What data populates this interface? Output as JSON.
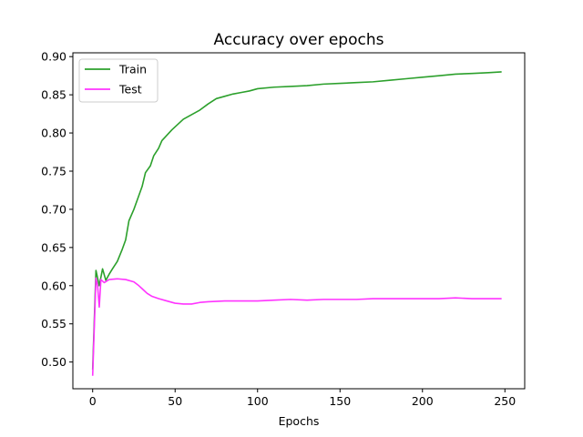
{
  "chart_data": {
    "type": "line",
    "title": "Accuracy over epochs",
    "xlabel": "Epochs",
    "ylabel": "",
    "xlim": [
      -12,
      262
    ],
    "ylim": [
      0.465,
      0.905
    ],
    "xticks": [
      0,
      50,
      100,
      150,
      200,
      250
    ],
    "yticks": [
      0.5,
      0.55,
      0.6,
      0.65,
      0.7,
      0.75,
      0.8,
      0.85,
      0.9
    ],
    "grid": false,
    "legend": "top-left",
    "series": [
      {
        "name": "Train",
        "color": "#2ca02c",
        "points": [
          [
            0,
            0.49
          ],
          [
            2,
            0.62
          ],
          [
            4,
            0.6
          ],
          [
            6,
            0.622
          ],
          [
            8,
            0.607
          ],
          [
            10,
            0.615
          ],
          [
            12,
            0.622
          ],
          [
            15,
            0.632
          ],
          [
            18,
            0.648
          ],
          [
            20,
            0.66
          ],
          [
            22,
            0.685
          ],
          [
            25,
            0.7
          ],
          [
            27,
            0.712
          ],
          [
            30,
            0.73
          ],
          [
            32,
            0.748
          ],
          [
            35,
            0.757
          ],
          [
            37,
            0.77
          ],
          [
            40,
            0.78
          ],
          [
            42,
            0.79
          ],
          [
            45,
            0.797
          ],
          [
            48,
            0.804
          ],
          [
            50,
            0.808
          ],
          [
            55,
            0.818
          ],
          [
            60,
            0.824
          ],
          [
            65,
            0.83
          ],
          [
            70,
            0.838
          ],
          [
            75,
            0.845
          ],
          [
            80,
            0.848
          ],
          [
            85,
            0.851
          ],
          [
            90,
            0.853
          ],
          [
            95,
            0.855
          ],
          [
            100,
            0.858
          ],
          [
            110,
            0.86
          ],
          [
            120,
            0.861
          ],
          [
            130,
            0.862
          ],
          [
            140,
            0.864
          ],
          [
            150,
            0.865
          ],
          [
            160,
            0.866
          ],
          [
            170,
            0.867
          ],
          [
            180,
            0.869
          ],
          [
            190,
            0.871
          ],
          [
            200,
            0.873
          ],
          [
            210,
            0.875
          ],
          [
            220,
            0.877
          ],
          [
            230,
            0.878
          ],
          [
            240,
            0.879
          ],
          [
            248,
            0.88
          ]
        ]
      },
      {
        "name": "Test",
        "color": "#ff33ff",
        "points": [
          [
            0,
            0.482
          ],
          [
            2,
            0.61
          ],
          [
            3,
            0.6
          ],
          [
            4,
            0.572
          ],
          [
            5,
            0.608
          ],
          [
            7,
            0.604
          ],
          [
            10,
            0.608
          ],
          [
            15,
            0.609
          ],
          [
            20,
            0.608
          ],
          [
            25,
            0.605
          ],
          [
            28,
            0.6
          ],
          [
            30,
            0.596
          ],
          [
            33,
            0.59
          ],
          [
            36,
            0.586
          ],
          [
            40,
            0.583
          ],
          [
            45,
            0.58
          ],
          [
            50,
            0.577
          ],
          [
            55,
            0.576
          ],
          [
            60,
            0.576
          ],
          [
            65,
            0.578
          ],
          [
            70,
            0.579
          ],
          [
            80,
            0.58
          ],
          [
            90,
            0.58
          ],
          [
            100,
            0.58
          ],
          [
            110,
            0.581
          ],
          [
            120,
            0.582
          ],
          [
            130,
            0.581
          ],
          [
            140,
            0.582
          ],
          [
            150,
            0.582
          ],
          [
            160,
            0.582
          ],
          [
            170,
            0.583
          ],
          [
            180,
            0.583
          ],
          [
            190,
            0.583
          ],
          [
            200,
            0.583
          ],
          [
            210,
            0.583
          ],
          [
            220,
            0.584
          ],
          [
            230,
            0.583
          ],
          [
            240,
            0.583
          ],
          [
            248,
            0.583
          ]
        ]
      }
    ]
  }
}
